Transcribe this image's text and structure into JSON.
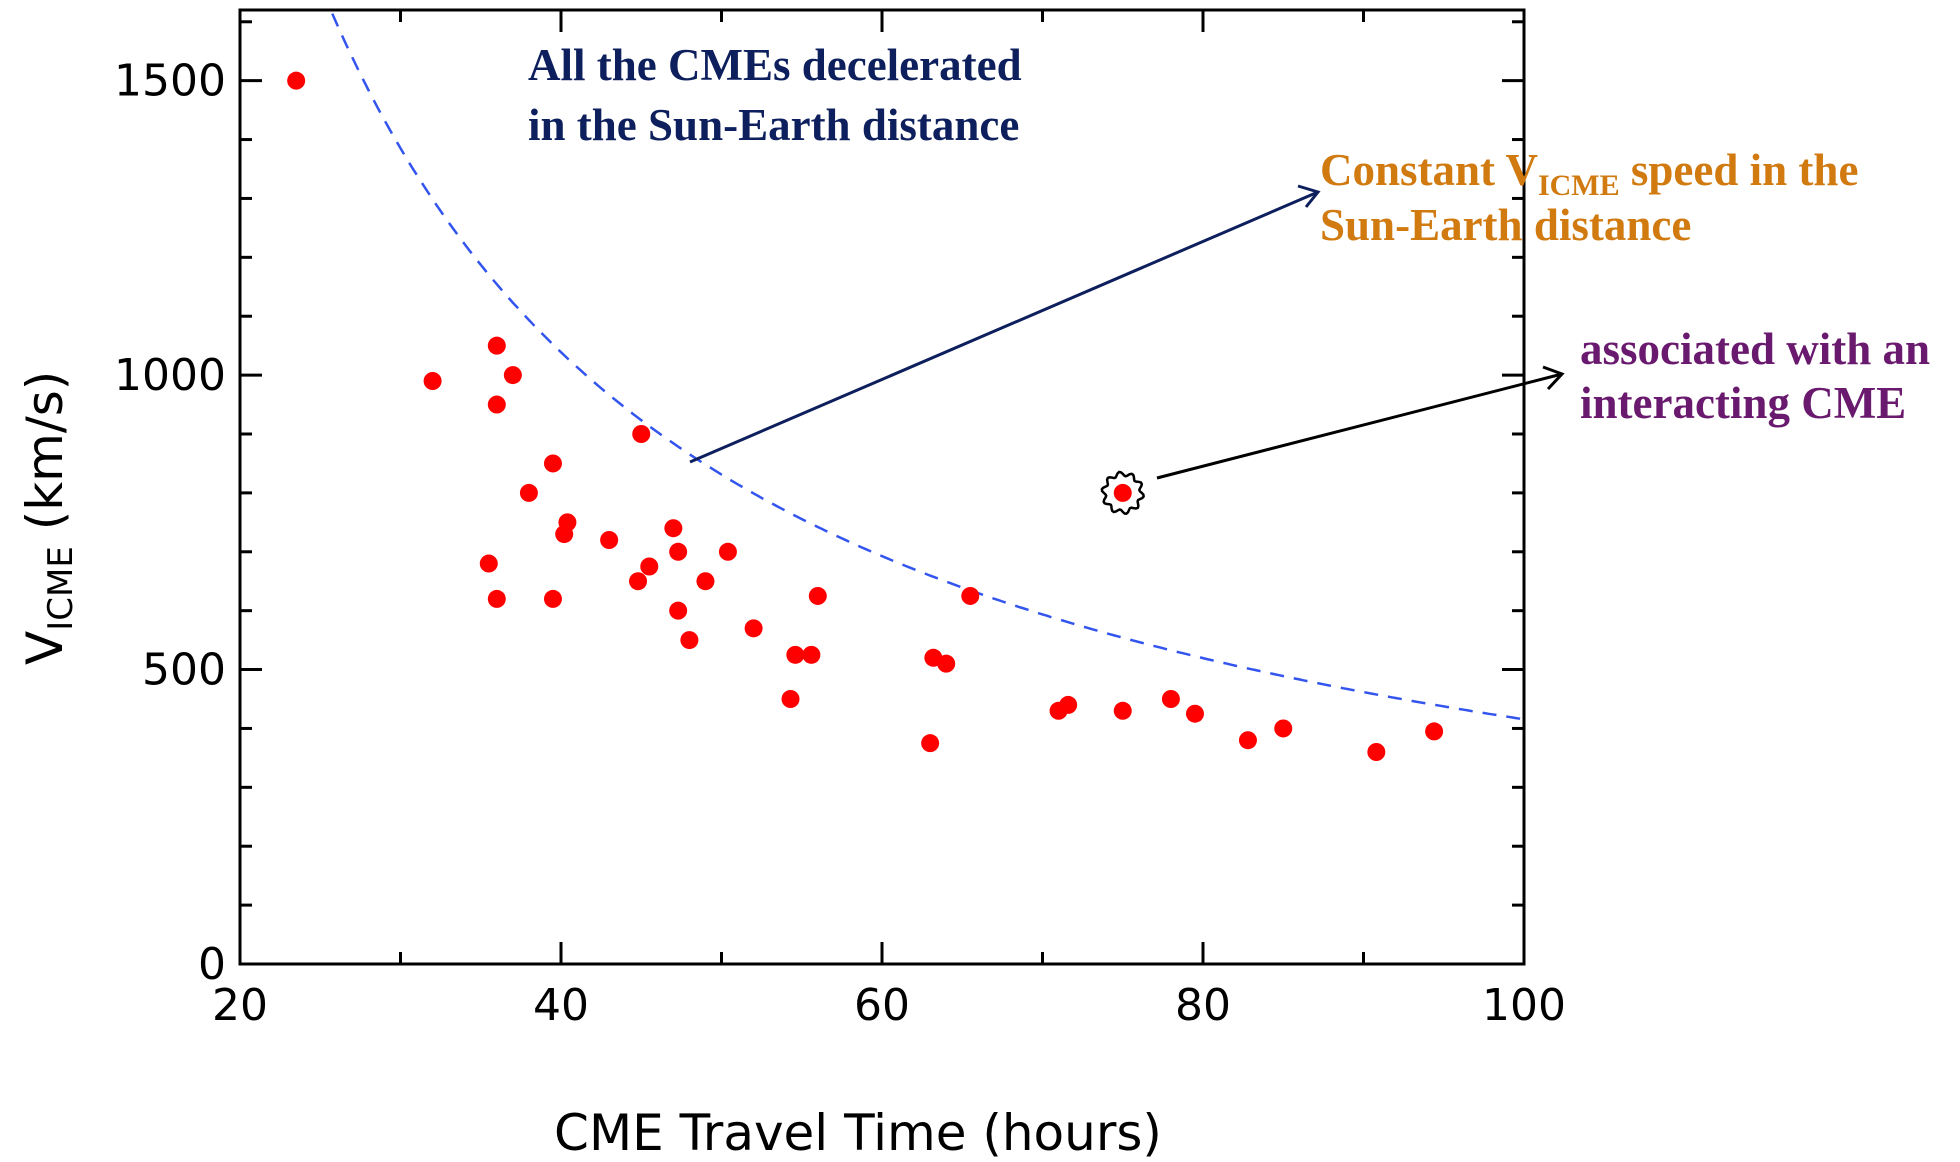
{
  "chart_data": {
    "type": "scatter",
    "xlabel": "CME Travel Time (hours)",
    "ylabel": {
      "main": "V",
      "sub": "ICME",
      "unit": " (km/s)"
    },
    "xlim": [
      20,
      100
    ],
    "ylim": [
      0,
      1620
    ],
    "x_ticks": [
      20,
      40,
      60,
      80,
      100
    ],
    "x_minor_step": 10,
    "y_ticks": [
      0,
      500,
      1000,
      1500
    ],
    "y_minor_step": 100,
    "grid": false,
    "point_color": "#ff0000",
    "curve_color": "#3355ee",
    "curve": {
      "style": "dashed",
      "description_formula": "V = 1.496e8 km / (3600 * t)"
    },
    "series": [
      {
        "points": [
          [
            23.5,
            1500
          ],
          [
            32,
            990
          ],
          [
            35.5,
            680
          ],
          [
            36,
            1050
          ],
          [
            36,
            950
          ],
          [
            36,
            620
          ],
          [
            37,
            1000
          ],
          [
            38,
            800
          ],
          [
            39.5,
            850
          ],
          [
            39.5,
            620
          ],
          [
            40.2,
            730
          ],
          [
            40.4,
            750
          ],
          [
            43,
            720
          ],
          [
            44.8,
            650
          ],
          [
            45,
            900
          ],
          [
            45.5,
            675
          ],
          [
            47,
            740
          ],
          [
            47.3,
            700
          ],
          [
            47.3,
            600
          ],
          [
            48,
            550
          ],
          [
            49,
            650
          ],
          [
            50.4,
            700
          ],
          [
            52,
            570
          ],
          [
            54.3,
            450
          ],
          [
            54.6,
            525
          ],
          [
            55.6,
            525
          ],
          [
            56,
            625
          ],
          [
            63,
            375
          ],
          [
            63.2,
            520
          ],
          [
            64,
            510
          ],
          [
            65.5,
            625
          ],
          [
            71,
            430
          ],
          [
            71.6,
            440
          ],
          [
            75,
            800
          ],
          [
            75,
            430
          ],
          [
            78,
            450
          ],
          [
            79.5,
            425
          ],
          [
            82.8,
            380
          ],
          [
            85,
            400
          ],
          [
            90.8,
            360
          ],
          [
            94.4,
            395
          ]
        ]
      }
    ],
    "annotations": {
      "decel_line1": "All the CMEs decelerated",
      "decel_line2": "in the Sun-Earth distance",
      "const_pre": "Constant V",
      "const_sub": "ICME",
      "const_post": " speed in the",
      "const_line2": "Sun-Earth distance",
      "interact_line1": "associated with an",
      "interact_line2": "interacting CME"
    },
    "annotation_colors": {
      "decel": "#0d1f5c",
      "constant": "#d07a10",
      "interacting": "#6a1a6e"
    }
  }
}
